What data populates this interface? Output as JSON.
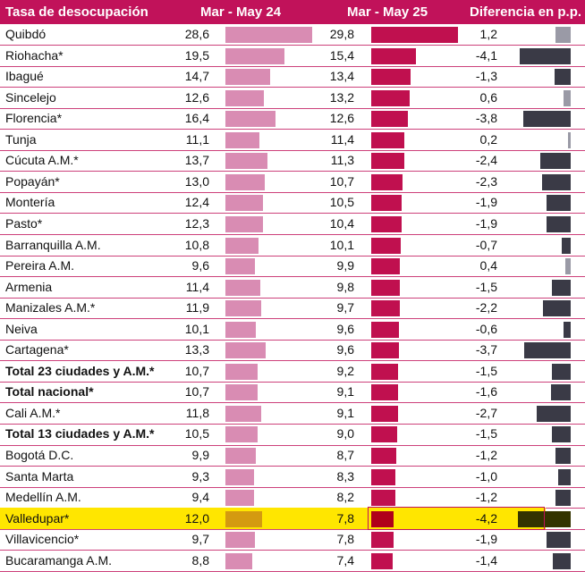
{
  "chart_data": {
    "type": "table",
    "title": "",
    "columns": [
      "Tasa de desocupación",
      "Mar - May 24",
      "Mar - May 25",
      "Diferencia en p.p."
    ],
    "rows": [
      {
        "name": "Quibdó",
        "v24": 28.6,
        "v25": 29.8,
        "diff": 1.2,
        "v24_label": "28,6",
        "v25_label": "29,8",
        "diff_label": "1,2",
        "bold": false
      },
      {
        "name": "Riohacha*",
        "v24": 19.5,
        "v25": 15.4,
        "diff": -4.1,
        "v24_label": "19,5",
        "v25_label": "15,4",
        "diff_label": "-4,1",
        "bold": false
      },
      {
        "name": "Ibagué",
        "v24": 14.7,
        "v25": 13.4,
        "diff": -1.3,
        "v24_label": "14,7",
        "v25_label": "13,4",
        "diff_label": "-1,3",
        "bold": false
      },
      {
        "name": "Sincelejo",
        "v24": 12.6,
        "v25": 13.2,
        "diff": 0.6,
        "v24_label": "12,6",
        "v25_label": "13,2",
        "diff_label": "0,6",
        "bold": false
      },
      {
        "name": "Florencia*",
        "v24": 16.4,
        "v25": 12.6,
        "diff": -3.8,
        "v24_label": "16,4",
        "v25_label": "12,6",
        "diff_label": "-3,8",
        "bold": false
      },
      {
        "name": "Tunja",
        "v24": 11.1,
        "v25": 11.4,
        "diff": 0.2,
        "v24_label": "11,1",
        "v25_label": "11,4",
        "diff_label": "0,2",
        "bold": false
      },
      {
        "name": "Cúcuta A.M.*",
        "v24": 13.7,
        "v25": 11.3,
        "diff": -2.4,
        "v24_label": "13,7",
        "v25_label": "11,3",
        "diff_label": "-2,4",
        "bold": false
      },
      {
        "name": "Popayán*",
        "v24": 13.0,
        "v25": 10.7,
        "diff": -2.3,
        "v24_label": "13,0",
        "v25_label": "10,7",
        "diff_label": "-2,3",
        "bold": false
      },
      {
        "name": "Montería",
        "v24": 12.4,
        "v25": 10.5,
        "diff": -1.9,
        "v24_label": "12,4",
        "v25_label": "10,5",
        "diff_label": "-1,9",
        "bold": false
      },
      {
        "name": "Pasto*",
        "v24": 12.3,
        "v25": 10.4,
        "diff": -1.9,
        "v24_label": "12,3",
        "v25_label": "10,4",
        "diff_label": "-1,9",
        "bold": false
      },
      {
        "name": "Barranquilla A.M.",
        "v24": 10.8,
        "v25": 10.1,
        "diff": -0.7,
        "v24_label": "10,8",
        "v25_label": "10,1",
        "diff_label": "-0,7",
        "bold": false
      },
      {
        "name": "Pereira A.M.",
        "v24": 9.6,
        "v25": 9.9,
        "diff": 0.4,
        "v24_label": "9,6",
        "v25_label": "9,9",
        "diff_label": "0,4",
        "bold": false
      },
      {
        "name": "Armenia",
        "v24": 11.4,
        "v25": 9.8,
        "diff": -1.5,
        "v24_label": "11,4",
        "v25_label": "9,8",
        "diff_label": "-1,5",
        "bold": false
      },
      {
        "name": "Manizales A.M.*",
        "v24": 11.9,
        "v25": 9.7,
        "diff": -2.2,
        "v24_label": "11,9",
        "v25_label": "9,7",
        "diff_label": "-2,2",
        "bold": false
      },
      {
        "name": "Neiva",
        "v24": 10.1,
        "v25": 9.6,
        "diff": -0.6,
        "v24_label": "10,1",
        "v25_label": "9,6",
        "diff_label": "-0,6",
        "bold": false
      },
      {
        "name": "Cartagena*",
        "v24": 13.3,
        "v25": 9.6,
        "diff": -3.7,
        "v24_label": "13,3",
        "v25_label": "9,6",
        "diff_label": "-3,7",
        "bold": false
      },
      {
        "name": "Total 23 ciudades y A.M.*",
        "v24": 10.7,
        "v25": 9.2,
        "diff": -1.5,
        "v24_label": "10,7",
        "v25_label": "9,2",
        "diff_label": "-1,5",
        "bold": true
      },
      {
        "name": "Total nacional*",
        "v24": 10.7,
        "v25": 9.1,
        "diff": -1.6,
        "v24_label": "10,7",
        "v25_label": "9,1",
        "diff_label": "-1,6",
        "bold": true
      },
      {
        "name": "Cali A.M.*",
        "v24": 11.8,
        "v25": 9.1,
        "diff": -2.7,
        "v24_label": "11,8",
        "v25_label": "9,1",
        "diff_label": "-2,7",
        "bold": false
      },
      {
        "name": "Total 13 ciudades y A.M.*",
        "v24": 10.5,
        "v25": 9.0,
        "diff": -1.5,
        "v24_label": "10,5",
        "v25_label": "9,0",
        "diff_label": "-1,5",
        "bold": true
      },
      {
        "name": "Bogotá D.C.",
        "v24": 9.9,
        "v25": 8.7,
        "diff": -1.2,
        "v24_label": "9,9",
        "v25_label": "8,7",
        "diff_label": "-1,2",
        "bold": false
      },
      {
        "name": "Santa Marta",
        "v24": 9.3,
        "v25": 8.3,
        "diff": -1.0,
        "v24_label": "9,3",
        "v25_label": "8,3",
        "diff_label": "-1,0",
        "bold": false
      },
      {
        "name": "Medellín A.M.",
        "v24": 9.4,
        "v25": 8.2,
        "diff": -1.2,
        "v24_label": "9,4",
        "v25_label": "8,2",
        "diff_label": "-1,2",
        "bold": false
      },
      {
        "name": "Valledupar*",
        "v24": 12.0,
        "v25": 7.8,
        "diff": -4.2,
        "v24_label": "12,0",
        "v25_label": "7,8",
        "diff_label": "-4,2",
        "bold": false,
        "highlight": true
      },
      {
        "name": "Villavicencio*",
        "v24": 9.7,
        "v25": 7.8,
        "diff": -1.9,
        "v24_label": "9,7",
        "v25_label": "7,8",
        "diff_label": "-1,9",
        "bold": false
      },
      {
        "name": "Bucaramanga A.M.",
        "v24": 8.8,
        "v25": 7.4,
        "diff": -1.4,
        "v24_label": "8,8",
        "v25_label": "7,4",
        "diff_label": "-1,4",
        "bold": false
      }
    ],
    "colors": {
      "header": "#c1125a",
      "bar24": "#d98cb3",
      "bar25": "#c0104f",
      "diff_neg": "#3a3a46",
      "diff_pos": "#9a9aa6",
      "highlight": "#ffe600",
      "highlight_bar24": "#d49a10",
      "highlight_bar25": "#b0001a",
      "highlight_diff": "#333300"
    }
  }
}
